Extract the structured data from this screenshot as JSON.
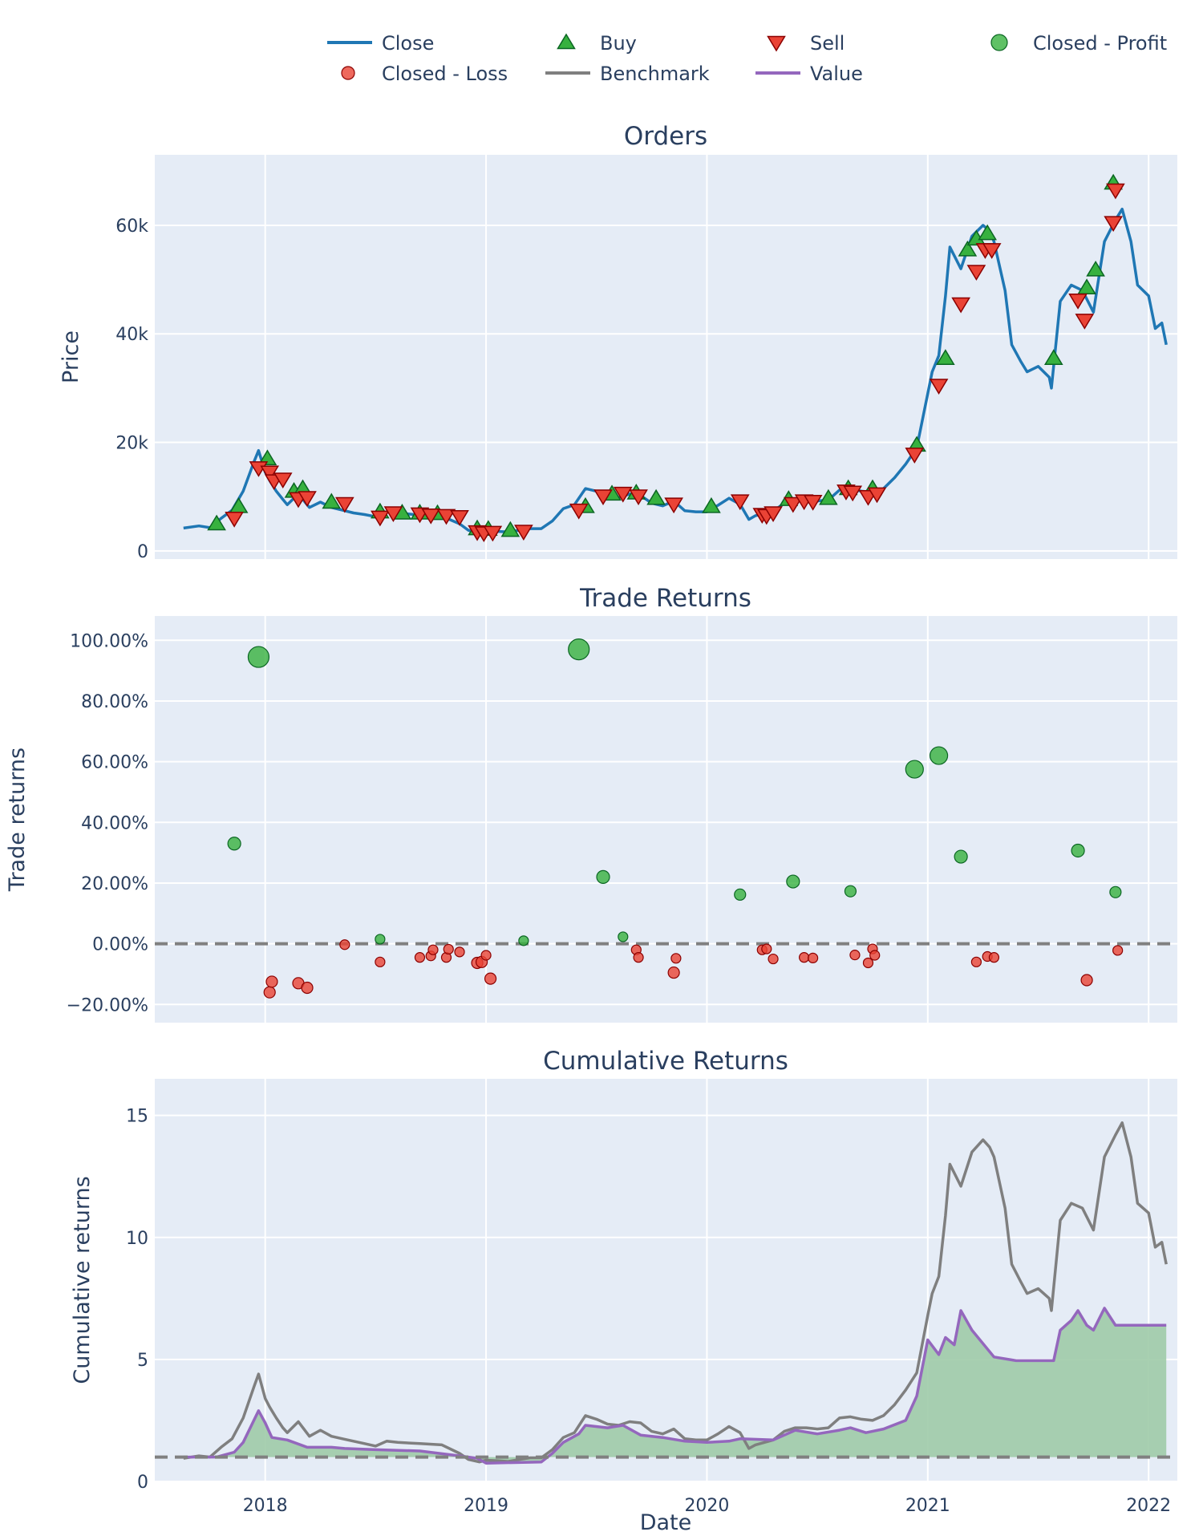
{
  "colors": {
    "close": "#1f77b4",
    "benchmark": "#7f7f7f",
    "value": "#9467bd",
    "buy_fill": "#37b13f",
    "buy_edge": "#0b6623",
    "sell_fill": "#ea4335",
    "sell_edge": "#8b0000",
    "profit_fill": "#37b13f",
    "profit_edge": "#0b6623",
    "loss_fill": "#ea4335",
    "loss_edge": "#8b0000",
    "panel_bg": "#e5ecf6",
    "grid": "#ffffff",
    "profit_area": "#9ecba8"
  },
  "legend": [
    "Close",
    "Buy",
    "Sell",
    "Closed - Profit",
    "Closed - Loss",
    "Benchmark",
    "Value"
  ],
  "x_axis": {
    "label": "Date",
    "ticks": [
      "2018",
      "2019",
      "2020",
      "2021",
      "2022"
    ],
    "tick_values": [
      2018.0,
      2019.0,
      2020.0,
      2021.0,
      2022.0
    ],
    "range": [
      2017.5,
      2022.13
    ]
  },
  "chart_data": [
    {
      "type": "line",
      "title": "Orders",
      "ylabel": "Price",
      "ylim": [
        -1500,
        73000
      ],
      "yticks": [
        0,
        20000,
        40000,
        60000
      ],
      "ytick_labels": [
        "0",
        "20k",
        "40k",
        "60k"
      ],
      "series": [
        {
          "name": "Close",
          "x": [
            2017.63,
            2017.7,
            2017.75,
            2017.8,
            2017.85,
            2017.9,
            2017.95,
            2017.97,
            2018.0,
            2018.02,
            2018.05,
            2018.08,
            2018.1,
            2018.15,
            2018.2,
            2018.25,
            2018.3,
            2018.35,
            2018.4,
            2018.45,
            2018.5,
            2018.55,
            2018.6,
            2018.7,
            2018.8,
            2018.88,
            2018.92,
            2018.97,
            2019.0,
            2019.05,
            2019.1,
            2019.15,
            2019.2,
            2019.25,
            2019.3,
            2019.35,
            2019.4,
            2019.45,
            2019.5,
            2019.55,
            2019.6,
            2019.65,
            2019.7,
            2019.75,
            2019.8,
            2019.85,
            2019.9,
            2019.95,
            2020.0,
            2020.05,
            2020.1,
            2020.15,
            2020.19,
            2020.22,
            2020.3,
            2020.35,
            2020.4,
            2020.45,
            2020.5,
            2020.55,
            2020.6,
            2020.65,
            2020.7,
            2020.75,
            2020.8,
            2020.85,
            2020.9,
            2020.95,
            2021.0,
            2021.02,
            2021.05,
            2021.08,
            2021.1,
            2021.15,
            2021.2,
            2021.25,
            2021.28,
            2021.3,
            2021.35,
            2021.38,
            2021.42,
            2021.45,
            2021.5,
            2021.55,
            2021.56,
            2021.6,
            2021.65,
            2021.7,
            2021.75,
            2021.8,
            2021.85,
            2021.88,
            2021.92,
            2021.95,
            2022.0,
            2022.03,
            2022.06,
            2022.08
          ],
          "y": [
            4200,
            4600,
            4300,
            6000,
            7500,
            11000,
            16500,
            18500,
            14500,
            13000,
            11000,
            9500,
            8500,
            10500,
            8000,
            9000,
            8000,
            7500,
            7000,
            6700,
            6300,
            7200,
            7000,
            6600,
            6400,
            5000,
            3800,
            3400,
            3700,
            3600,
            3500,
            3800,
            4100,
            4100,
            5500,
            7800,
            8500,
            11500,
            11000,
            10000,
            9800,
            10500,
            10200,
            8800,
            8300,
            9200,
            7400,
            7200,
            7200,
            8400,
            9700,
            8600,
            5800,
            6500,
            7300,
            8800,
            9400,
            9500,
            9200,
            9400,
            11200,
            11400,
            11000,
            10800,
            11500,
            13500,
            16000,
            19000,
            29000,
            33000,
            36000,
            47000,
            56000,
            52000,
            58000,
            60000,
            59000,
            57000,
            48000,
            38000,
            35000,
            33000,
            34000,
            32000,
            30000,
            46000,
            49000,
            48000,
            44000,
            57000,
            61000,
            63000,
            57000,
            49000,
            47000,
            41000,
            42000,
            38000
          ],
          "color_key": "close"
        }
      ],
      "markers": [
        {
          "name": "Buy",
          "symbol": "triangle-up",
          "x": [
            2017.78,
            2017.88,
            2018.01,
            2018.13,
            2018.17,
            2018.3,
            2018.52,
            2018.62,
            2018.7,
            2018.78,
            2018.96,
            2019.01,
            2019.11,
            2019.45,
            2019.57,
            2019.68,
            2019.77,
            2020.02,
            2020.37,
            2020.55,
            2020.64,
            2020.75,
            2020.95,
            2021.08,
            2021.18,
            2021.22,
            2021.27,
            2021.57,
            2021.72,
            2021.76,
            2021.84
          ],
          "y": [
            5000,
            8200,
            17000,
            11000,
            11500,
            9000,
            7200,
            7000,
            7000,
            6900,
            4100,
            4000,
            3800,
            8200,
            10500,
            10700,
            9700,
            8200,
            9500,
            9700,
            11500,
            11500,
            19500,
            35500,
            55500,
            57500,
            58500,
            35500,
            48500,
            51800,
            67800
          ]
        },
        {
          "name": "Sell",
          "symbol": "triangle-down",
          "x": [
            2017.86,
            2017.97,
            2018.02,
            2018.04,
            2018.08,
            2018.15,
            2018.19,
            2018.36,
            2018.52,
            2018.58,
            2018.7,
            2018.75,
            2018.82,
            2018.88,
            2018.96,
            2018.99,
            2019.03,
            2019.17,
            2019.42,
            2019.53,
            2019.62,
            2019.69,
            2019.85,
            2020.15,
            2020.25,
            2020.27,
            2020.3,
            2020.39,
            2020.44,
            2020.48,
            2020.63,
            2020.66,
            2020.73,
            2020.77,
            2020.94,
            2021.05,
            2021.15,
            2021.22,
            2021.26,
            2021.29,
            2021.68,
            2021.71,
            2021.84,
            2021.85
          ],
          "y": [
            6000,
            15300,
            14500,
            12900,
            13200,
            9600,
            9800,
            8700,
            6200,
            7000,
            6800,
            6600,
            6500,
            6300,
            3500,
            3300,
            3400,
            3600,
            7500,
            10100,
            10600,
            10100,
            8600,
            9200,
            6700,
            6500,
            7000,
            8700,
            9200,
            9100,
            11000,
            10800,
            10000,
            10500,
            17800,
            30500,
            45500,
            51500,
            55500,
            55500,
            46200,
            42500,
            60500,
            66500
          ]
        }
      ]
    },
    {
      "type": "scatter",
      "title": "Trade Returns",
      "ylabel": "Trade returns",
      "ylim": [
        -26,
        108
      ],
      "yticks": [
        -20,
        0,
        20,
        40,
        60,
        80,
        100
      ],
      "ytick_labels": [
        "−20.00%",
        "0.00%",
        "20.00%",
        "40.00%",
        "60.00%",
        "80.00%",
        "100.00%"
      ],
      "zero_line": 0,
      "series": [
        {
          "name": "Closed - Profit",
          "x": [
            2017.86,
            2017.97,
            2018.52,
            2019.17,
            2019.42,
            2019.53,
            2019.62,
            2020.15,
            2020.39,
            2020.65,
            2020.94,
            2021.05,
            2021.15,
            2021.68,
            2021.85
          ],
          "y": [
            33,
            94.5,
            1.5,
            1,
            97,
            22,
            2.3,
            16.2,
            20.5,
            17.3,
            57.5,
            62,
            28.7,
            30.7,
            17
          ],
          "size": [
            8,
            13,
            6,
            6,
            13,
            8,
            6,
            7,
            8,
            7,
            11,
            11,
            8,
            8,
            7
          ]
        },
        {
          "name": "Closed - Loss",
          "x": [
            2018.02,
            2018.03,
            2018.15,
            2018.19,
            2018.36,
            2018.52,
            2018.7,
            2018.75,
            2018.76,
            2018.82,
            2018.83,
            2018.88,
            2018.96,
            2018.98,
            2019.0,
            2019.02,
            2019.68,
            2019.69,
            2019.85,
            2019.86,
            2020.25,
            2020.27,
            2020.3,
            2020.44,
            2020.48,
            2020.67,
            2020.73,
            2020.75,
            2020.76,
            2021.22,
            2021.27,
            2021.3,
            2021.72,
            2021.86
          ],
          "y": [
            -16,
            -12.5,
            -13,
            -14.5,
            -0.3,
            -6,
            -4.5,
            -4,
            -2,
            -4.5,
            -1.8,
            -2.7,
            -6.3,
            -6,
            -3.8,
            -11.5,
            -2,
            -4.5,
            -9.5,
            -4.8,
            -2,
            -1.7,
            -5,
            -4.5,
            -4.7,
            -3.7,
            -6.3,
            -1.7,
            -3.8,
            -6,
            -4.2,
            -4.5,
            -12,
            -2.2
          ],
          "size": [
            7,
            7,
            7,
            7,
            6,
            6,
            6,
            6,
            6,
            6,
            6,
            6,
            7,
            7,
            6,
            7,
            6,
            6,
            7,
            6,
            6,
            6,
            6,
            6,
            6,
            6,
            6,
            6,
            6,
            6,
            6,
            6,
            7,
            6
          ]
        }
      ]
    },
    {
      "type": "area",
      "title": "Cumulative Returns",
      "ylabel": "Cumulative returns",
      "ylim": [
        0,
        16.5
      ],
      "yticks": [
        0,
        5,
        10,
        15
      ],
      "ytick_labels": [
        "0",
        "5",
        "10",
        "15"
      ],
      "baseline": 1,
      "series": [
        {
          "name": "Benchmark",
          "x": [
            2017.63,
            2017.7,
            2017.75,
            2017.8,
            2017.85,
            2017.9,
            2017.95,
            2017.97,
            2018.0,
            2018.02,
            2018.05,
            2018.08,
            2018.1,
            2018.15,
            2018.2,
            2018.25,
            2018.3,
            2018.35,
            2018.4,
            2018.45,
            2018.5,
            2018.55,
            2018.6,
            2018.7,
            2018.8,
            2018.88,
            2018.92,
            2018.97,
            2019.0,
            2019.05,
            2019.1,
            2019.15,
            2019.2,
            2019.25,
            2019.3,
            2019.35,
            2019.4,
            2019.45,
            2019.5,
            2019.55,
            2019.6,
            2019.65,
            2019.7,
            2019.75,
            2019.8,
            2019.85,
            2019.9,
            2019.95,
            2020.0,
            2020.05,
            2020.1,
            2020.15,
            2020.19,
            2020.22,
            2020.3,
            2020.35,
            2020.4,
            2020.45,
            2020.5,
            2020.55,
            2020.6,
            2020.65,
            2020.7,
            2020.75,
            2020.8,
            2020.85,
            2020.9,
            2020.95,
            2021.0,
            2021.02,
            2021.05,
            2021.08,
            2021.1,
            2021.15,
            2021.2,
            2021.25,
            2021.28,
            2021.3,
            2021.35,
            2021.38,
            2021.42,
            2021.45,
            2021.5,
            2021.55,
            2021.56,
            2021.6,
            2021.65,
            2021.7,
            2021.75,
            2021.8,
            2021.85,
            2021.88,
            2021.92,
            2021.95,
            2022.0,
            2022.03,
            2022.06,
            2022.08
          ],
          "y": [
            0.95,
            1.05,
            1.0,
            1.4,
            1.75,
            2.6,
            3.9,
            4.4,
            3.4,
            3.05,
            2.6,
            2.2,
            2.0,
            2.45,
            1.85,
            2.1,
            1.85,
            1.75,
            1.65,
            1.55,
            1.45,
            1.65,
            1.6,
            1.55,
            1.5,
            1.15,
            0.9,
            0.8,
            0.87,
            0.85,
            0.82,
            0.9,
            0.97,
            0.97,
            1.3,
            1.8,
            2.0,
            2.7,
            2.55,
            2.35,
            2.3,
            2.45,
            2.4,
            2.05,
            1.95,
            2.15,
            1.75,
            1.7,
            1.7,
            1.95,
            2.25,
            2.0,
            1.35,
            1.5,
            1.7,
            2.05,
            2.2,
            2.2,
            2.15,
            2.2,
            2.6,
            2.65,
            2.55,
            2.5,
            2.7,
            3.15,
            3.75,
            4.45,
            6.8,
            7.7,
            8.4,
            10.9,
            13.0,
            12.1,
            13.5,
            14.0,
            13.7,
            13.3,
            11.2,
            8.9,
            8.2,
            7.7,
            7.9,
            7.5,
            7.0,
            10.7,
            11.4,
            11.2,
            10.3,
            13.3,
            14.2,
            14.7,
            13.3,
            11.4,
            11.0,
            9.6,
            9.8,
            8.9
          ]
        },
        {
          "name": "Value",
          "x": [
            2017.63,
            2017.78,
            2017.86,
            2017.9,
            2017.97,
            2018.0,
            2018.03,
            2018.1,
            2018.19,
            2018.3,
            2018.36,
            2018.5,
            2018.7,
            2018.88,
            2018.96,
            2019.0,
            2019.25,
            2019.3,
            2019.35,
            2019.42,
            2019.45,
            2019.55,
            2019.62,
            2019.7,
            2019.8,
            2019.9,
            2020.0,
            2020.1,
            2020.15,
            2020.3,
            2020.4,
            2020.5,
            2020.6,
            2020.65,
            2020.72,
            2020.8,
            2020.9,
            2020.95,
            2021.0,
            2021.05,
            2021.08,
            2021.12,
            2021.15,
            2021.2,
            2021.3,
            2021.4,
            2021.57,
            2021.6,
            2021.65,
            2021.68,
            2021.72,
            2021.75,
            2021.8,
            2021.85,
            2021.9,
            2022.08
          ],
          "y": [
            1.0,
            1.0,
            1.2,
            1.6,
            2.9,
            2.4,
            1.8,
            1.7,
            1.4,
            1.4,
            1.35,
            1.3,
            1.25,
            1.05,
            0.95,
            0.75,
            0.8,
            1.15,
            1.6,
            1.95,
            2.3,
            2.2,
            2.3,
            1.9,
            1.8,
            1.65,
            1.6,
            1.65,
            1.75,
            1.7,
            2.1,
            1.95,
            2.1,
            2.2,
            2.0,
            2.15,
            2.5,
            3.5,
            5.8,
            5.2,
            5.9,
            5.6,
            7.0,
            6.2,
            5.1,
            4.95,
            4.95,
            6.2,
            6.6,
            7.0,
            6.4,
            6.2,
            7.1,
            6.4,
            6.4,
            6.4
          ]
        }
      ]
    }
  ]
}
